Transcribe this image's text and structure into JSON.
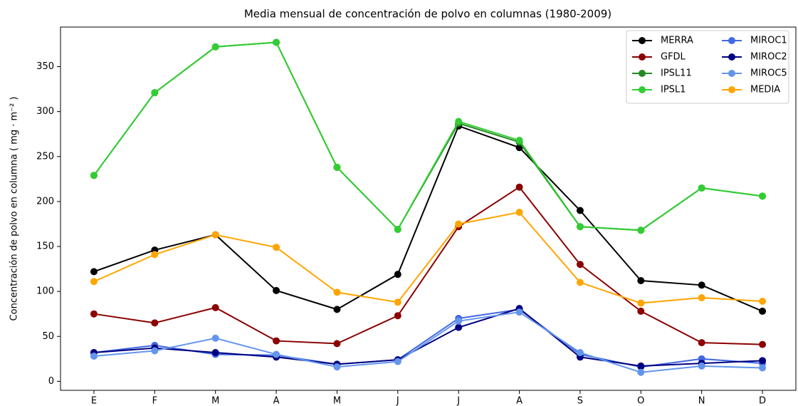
{
  "chart_data": {
    "type": "line",
    "title": "Media mensual de concentración de polvo en columnas (1980-2009)",
    "ylabel": "Concentración de polvo en columna ( mg · m⁻² )",
    "categories": [
      "E",
      "F",
      "M",
      "A",
      "M",
      "J",
      "J",
      "A",
      "S",
      "O",
      "N",
      "D"
    ],
    "series": [
      {
        "name": "MERRA",
        "color": "#000000",
        "values": [
          122,
          146,
          163,
          101,
          80,
          119,
          284,
          260,
          190,
          112,
          107,
          78
        ]
      },
      {
        "name": "GFDL",
        "color": "#8b0000",
        "values": [
          75,
          65,
          82,
          45,
          42,
          73,
          172,
          216,
          130,
          78,
          43,
          41
        ]
      },
      {
        "name": "IPSL11",
        "color": "#228b22",
        "values": [
          229,
          321,
          372,
          377,
          238,
          169,
          287,
          266,
          172,
          168,
          215,
          206
        ]
      },
      {
        "name": "IPSL1",
        "color": "#32cd32",
        "values": [
          229,
          321,
          372,
          377,
          238,
          169,
          289,
          268,
          172,
          168,
          215,
          206
        ]
      },
      {
        "name": "MIROC1",
        "color": "#4169e1",
        "values": [
          32,
          40,
          30,
          29,
          19,
          24,
          70,
          80,
          30,
          16,
          25,
          20
        ]
      },
      {
        "name": "MIROC2",
        "color": "#000080",
        "values": [
          32,
          37,
          32,
          27,
          19,
          24,
          60,
          81,
          27,
          17,
          20,
          23
        ]
      },
      {
        "name": "MIROC5",
        "color": "#6495ed",
        "values": [
          28,
          34,
          48,
          30,
          16,
          22,
          67,
          77,
          32,
          10,
          17,
          15
        ]
      },
      {
        "name": "MEDIA",
        "color": "#ffa500",
        "values": [
          111,
          141,
          163,
          149,
          99,
          88,
          175,
          188,
          110,
          87,
          93,
          89
        ]
      }
    ],
    "ylim": [
      -10,
      394
    ],
    "yticks": [
      0,
      50,
      100,
      150,
      200,
      250,
      300,
      350
    ],
    "legend": "upper right",
    "legend_columns": 2
  }
}
